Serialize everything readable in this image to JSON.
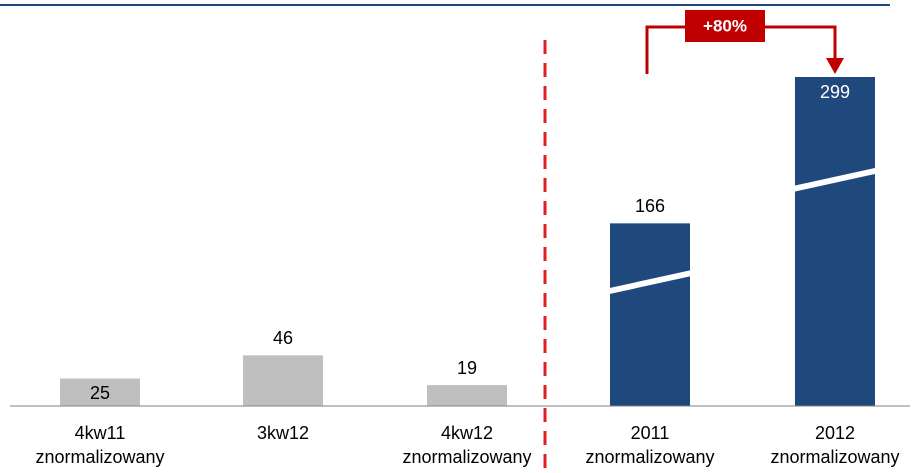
{
  "chart_data": {
    "type": "bar",
    "categories": [
      [
        "4kw11",
        "znormalizowany"
      ],
      [
        "3kw12"
      ],
      [
        "4kw12",
        "znormalizowany"
      ],
      [
        "2011",
        "znormalizowany"
      ],
      [
        "2012",
        "znormalizowany"
      ]
    ],
    "values": [
      25,
      46,
      19,
      166,
      299
    ],
    "colors": [
      "#bfbfbf",
      "#bfbfbf",
      "#bfbfbf",
      "#1f497d",
      "#1f497d"
    ],
    "annotation": "+80%"
  }
}
